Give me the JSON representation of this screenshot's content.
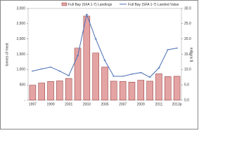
{
  "chart_data": {
    "type": "bar-line",
    "categories": [
      "1997",
      null,
      "1999",
      null,
      "2001",
      null,
      "2003",
      null,
      "2005",
      null,
      "2007",
      null,
      "2009",
      null,
      "2011",
      null,
      "2013p"
    ],
    "series": [
      {
        "name": "Full Bay (SFA 1-7) Landings",
        "color": "#e4a4a4",
        "type": "bar",
        "values": [
          490,
          560,
          610,
          630,
          710,
          1700,
          2750,
          1540,
          1080,
          620,
          610,
          590,
          650,
          620,
          860,
          770,
          780
        ]
      },
      {
        "name": "Full Bay (SFA 1-7) Landed Value",
        "color": "#4a6fb5",
        "type": "line",
        "axis": "y2",
        "values": [
          9.5,
          10.2,
          10.8,
          9.5,
          8,
          14.5,
          28,
          20,
          13,
          7.8,
          7.8,
          8.5,
          9,
          7.5,
          10.5,
          16.5,
          17
        ]
      }
    ],
    "ylabel": "tonnes of meat",
    "y2label": "millions $",
    "ylim": [
      0,
      3000
    ],
    "yticks": [
      {
        "value": 0,
        "label": "-"
      },
      500,
      {
        "value": 1000,
        "label": "1,000"
      },
      {
        "value": 1500,
        "label": "1,500"
      },
      {
        "value": 2000,
        "label": "2,000"
      },
      {
        "value": 2500,
        "label": "2,500"
      },
      {
        "value": 3000,
        "label": "3,000"
      }
    ],
    "y2lim": [
      0,
      30
    ],
    "y2ticks": [
      {
        "value": 0,
        "label": "0.0"
      },
      {
        "value": 5,
        "label": "5.0"
      },
      {
        "value": 10,
        "label": "10.0"
      },
      {
        "value": 15,
        "label": "15.0"
      },
      {
        "value": 20,
        "label": "20.0"
      },
      {
        "value": 25,
        "label": "25.0"
      },
      {
        "value": 30,
        "label": "30.0"
      }
    ]
  }
}
